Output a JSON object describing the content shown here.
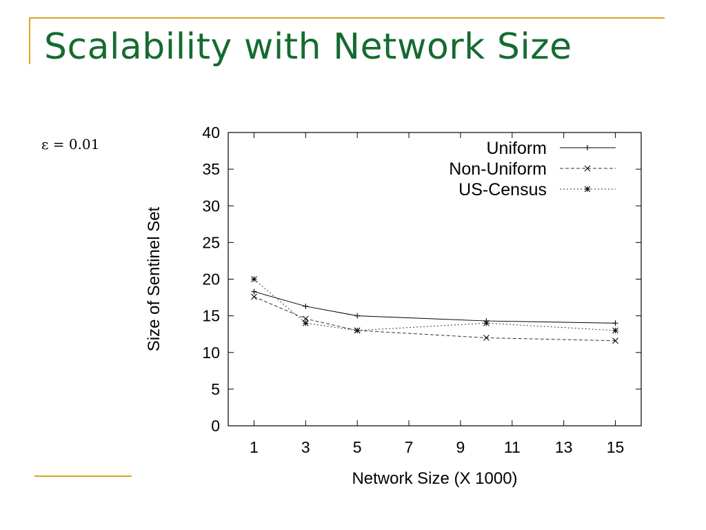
{
  "slide": {
    "title": "Scalability with Network Size",
    "note": "ε = 0.01"
  },
  "chart_data": {
    "type": "line",
    "xlabel": "Network Size (X 1000)",
    "ylabel": "Size of Sentinel Set",
    "xlim": [
      0,
      16
    ],
    "ylim": [
      0,
      40
    ],
    "xticks": [
      1,
      3,
      5,
      7,
      9,
      11,
      13,
      15
    ],
    "yticks": [
      0,
      5,
      10,
      15,
      20,
      25,
      30,
      35,
      40
    ],
    "grid": false,
    "legend_position": "top-right",
    "series": [
      {
        "name": "Uniform",
        "marker": "plus",
        "dash": "solid",
        "x": [
          1,
          3,
          5,
          10,
          15
        ],
        "y": [
          18.3,
          16.3,
          15,
          14.3,
          14
        ]
      },
      {
        "name": "Non-Uniform",
        "marker": "cross",
        "dash": "dashed",
        "x": [
          1,
          3,
          5,
          10,
          15
        ],
        "y": [
          17.6,
          14.6,
          13,
          12,
          11.6
        ]
      },
      {
        "name": "US-Census",
        "marker": "star",
        "dash": "dotted",
        "x": [
          1,
          3,
          5,
          10,
          15
        ],
        "y": [
          20,
          14,
          13,
          14,
          13
        ]
      }
    ]
  }
}
